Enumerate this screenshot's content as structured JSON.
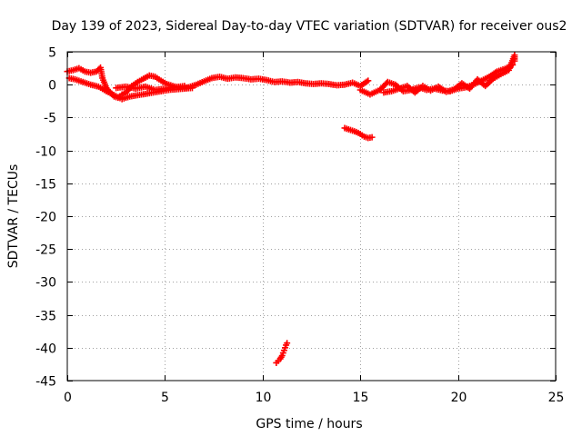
{
  "chart_data": {
    "type": "scatter",
    "title": "Day 139 of 2023, Sidereal Day-to-day VTEC variation (SDTVAR) for receiver ous2",
    "xlabel": "GPS time / hours",
    "ylabel": "SDTVAR / TECUs",
    "xlim": [
      0,
      25
    ],
    "ylim": [
      -45,
      5
    ],
    "xticks": [
      0,
      5,
      10,
      15,
      20,
      25
    ],
    "yticks": [
      5,
      0,
      -5,
      -10,
      -15,
      -20,
      -25,
      -30,
      -35,
      -40,
      -45
    ],
    "grid": true,
    "marker": "plus",
    "series": [
      {
        "name": "main-track-upper",
        "color": "#ff0000",
        "points": [
          [
            0.0,
            2.0
          ],
          [
            0.3,
            2.2
          ],
          [
            0.6,
            2.5
          ],
          [
            0.9,
            2.0
          ],
          [
            1.2,
            1.8
          ],
          [
            1.5,
            2.0
          ],
          [
            1.7,
            2.6
          ],
          [
            1.8,
            1.0
          ],
          [
            2.0,
            -0.5
          ],
          [
            2.2,
            -1.2
          ],
          [
            2.4,
            -1.8
          ],
          [
            2.6,
            -2.0
          ],
          [
            2.8,
            -1.5
          ],
          [
            3.0,
            -1.2
          ],
          [
            3.3,
            -0.2
          ],
          [
            3.6,
            0.4
          ],
          [
            3.9,
            0.9
          ],
          [
            4.2,
            1.4
          ],
          [
            4.5,
            1.2
          ],
          [
            4.8,
            0.6
          ],
          [
            5.1,
            0.1
          ],
          [
            5.4,
            -0.2
          ],
          [
            5.8,
            -0.5
          ],
          [
            6.2,
            -0.4
          ],
          [
            6.6,
            0.0
          ],
          [
            7.0,
            0.5
          ],
          [
            7.4,
            1.0
          ],
          [
            7.8,
            1.2
          ],
          [
            8.2,
            0.9
          ],
          [
            8.6,
            1.1
          ],
          [
            9.0,
            1.0
          ],
          [
            9.4,
            0.8
          ],
          [
            9.8,
            0.9
          ],
          [
            10.2,
            0.7
          ],
          [
            10.6,
            0.4
          ],
          [
            11.0,
            0.5
          ],
          [
            11.4,
            0.3
          ],
          [
            11.8,
            0.4
          ],
          [
            12.2,
            0.2
          ],
          [
            12.6,
            0.1
          ],
          [
            13.0,
            0.2
          ],
          [
            13.4,
            0.1
          ],
          [
            13.8,
            -0.1
          ],
          [
            14.2,
            0.0
          ],
          [
            14.6,
            0.3
          ],
          [
            15.0,
            -0.2
          ],
          [
            15.4,
            0.6
          ]
        ]
      },
      {
        "name": "main-track-lower",
        "color": "#ff0000",
        "points": [
          [
            0.1,
            1.0
          ],
          [
            0.4,
            0.8
          ],
          [
            0.8,
            0.4
          ],
          [
            1.2,
            0.0
          ],
          [
            1.6,
            -0.3
          ],
          [
            2.0,
            -1.0
          ],
          [
            2.4,
            -1.6
          ],
          [
            2.8,
            -2.2
          ],
          [
            3.2,
            -1.8
          ],
          [
            3.6,
            -1.6
          ],
          [
            4.0,
            -1.4
          ],
          [
            4.4,
            -1.2
          ],
          [
            4.8,
            -1.0
          ],
          [
            5.2,
            -0.8
          ],
          [
            5.6,
            -0.7
          ],
          [
            6.0,
            -0.6
          ],
          [
            6.4,
            -0.5
          ],
          [
            2.5,
            -0.5
          ],
          [
            3.0,
            -0.3
          ],
          [
            3.5,
            -0.6
          ],
          [
            4.0,
            -0.3
          ],
          [
            4.5,
            -0.8
          ],
          [
            5.0,
            -0.6
          ],
          [
            5.5,
            -0.4
          ],
          [
            6.0,
            -0.2
          ]
        ]
      },
      {
        "name": "late-track",
        "color": "#ff0000",
        "points": [
          [
            15.0,
            -0.8
          ],
          [
            15.5,
            -1.5
          ],
          [
            16.0,
            -0.8
          ],
          [
            16.4,
            0.4
          ],
          [
            16.8,
            0.0
          ],
          [
            17.2,
            -1.0
          ],
          [
            17.6,
            -0.8
          ],
          [
            18.0,
            -0.4
          ],
          [
            18.4,
            -0.8
          ],
          [
            18.8,
            -0.6
          ],
          [
            19.2,
            -0.9
          ],
          [
            19.6,
            -1.0
          ],
          [
            20.0,
            -0.6
          ],
          [
            20.4,
            -0.4
          ],
          [
            20.8,
            0.0
          ],
          [
            21.2,
            0.6
          ],
          [
            21.6,
            1.2
          ],
          [
            22.0,
            2.0
          ],
          [
            22.4,
            2.4
          ],
          [
            22.8,
            3.0
          ],
          [
            16.2,
            -1.2
          ],
          [
            16.6,
            -1.0
          ],
          [
            17.0,
            -0.6
          ],
          [
            17.4,
            -0.2
          ],
          [
            17.8,
            -1.2
          ],
          [
            18.2,
            -0.2
          ],
          [
            18.6,
            -0.9
          ],
          [
            19.0,
            -0.3
          ],
          [
            19.4,
            -1.1
          ],
          [
            19.8,
            -0.7
          ],
          [
            20.2,
            0.2
          ],
          [
            20.6,
            -0.6
          ],
          [
            21.0,
            0.8
          ],
          [
            21.4,
            -0.2
          ],
          [
            21.8,
            0.9
          ],
          [
            22.2,
            1.6
          ],
          [
            22.6,
            2.2
          ],
          [
            22.9,
            4.5
          ],
          [
            22.9,
            3.6
          ]
        ]
      },
      {
        "name": "excursion-near-15h",
        "color": "#ff0000",
        "points": [
          [
            14.2,
            -6.6
          ],
          [
            14.4,
            -6.8
          ],
          [
            14.6,
            -7.0
          ],
          [
            14.8,
            -7.2
          ],
          [
            15.0,
            -7.5
          ],
          [
            15.2,
            -7.9
          ],
          [
            15.4,
            -8.1
          ],
          [
            15.6,
            -8.0
          ]
        ]
      },
      {
        "name": "excursion-near-11h",
        "color": "#ff0000",
        "points": [
          [
            10.7,
            -42.3
          ],
          [
            10.8,
            -42.0
          ],
          [
            10.9,
            -41.7
          ],
          [
            11.0,
            -41.2
          ],
          [
            11.05,
            -40.8
          ],
          [
            11.1,
            -40.4
          ],
          [
            11.15,
            -40.0
          ],
          [
            11.2,
            -39.6
          ],
          [
            11.25,
            -39.3
          ]
        ]
      }
    ]
  }
}
